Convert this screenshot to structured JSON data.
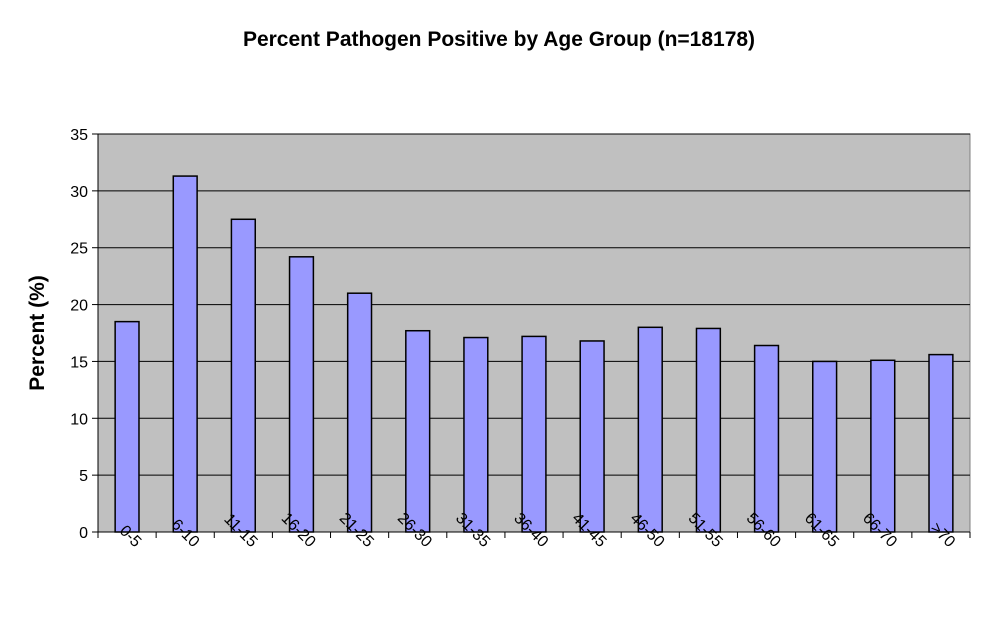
{
  "chart_data": {
    "type": "bar",
    "title": "Percent Pathogen Positive by Age Group (n=18178)",
    "xlabel": "",
    "ylabel": "Percent (%)",
    "ylim": [
      0,
      35
    ],
    "yticks": [
      0,
      5,
      10,
      15,
      20,
      25,
      30,
      35
    ],
    "grid": true,
    "categories": [
      "0-5",
      "6-10",
      "11-15",
      "16-20",
      "21-25",
      "26-30",
      "31-35",
      "36-40",
      "41-45",
      "46-50",
      "51-55",
      "56-60",
      "61-65",
      "66-70",
      ">70"
    ],
    "values": [
      18.5,
      31.3,
      27.5,
      24.2,
      21.0,
      17.7,
      17.1,
      17.2,
      16.8,
      18.0,
      17.9,
      16.4,
      15.0,
      15.1,
      15.6
    ],
    "colors": {
      "bar_fill": "#9999ff",
      "bar_stroke": "#000000",
      "plot_background": "#c0c0c0",
      "gridline": "#000000"
    }
  }
}
